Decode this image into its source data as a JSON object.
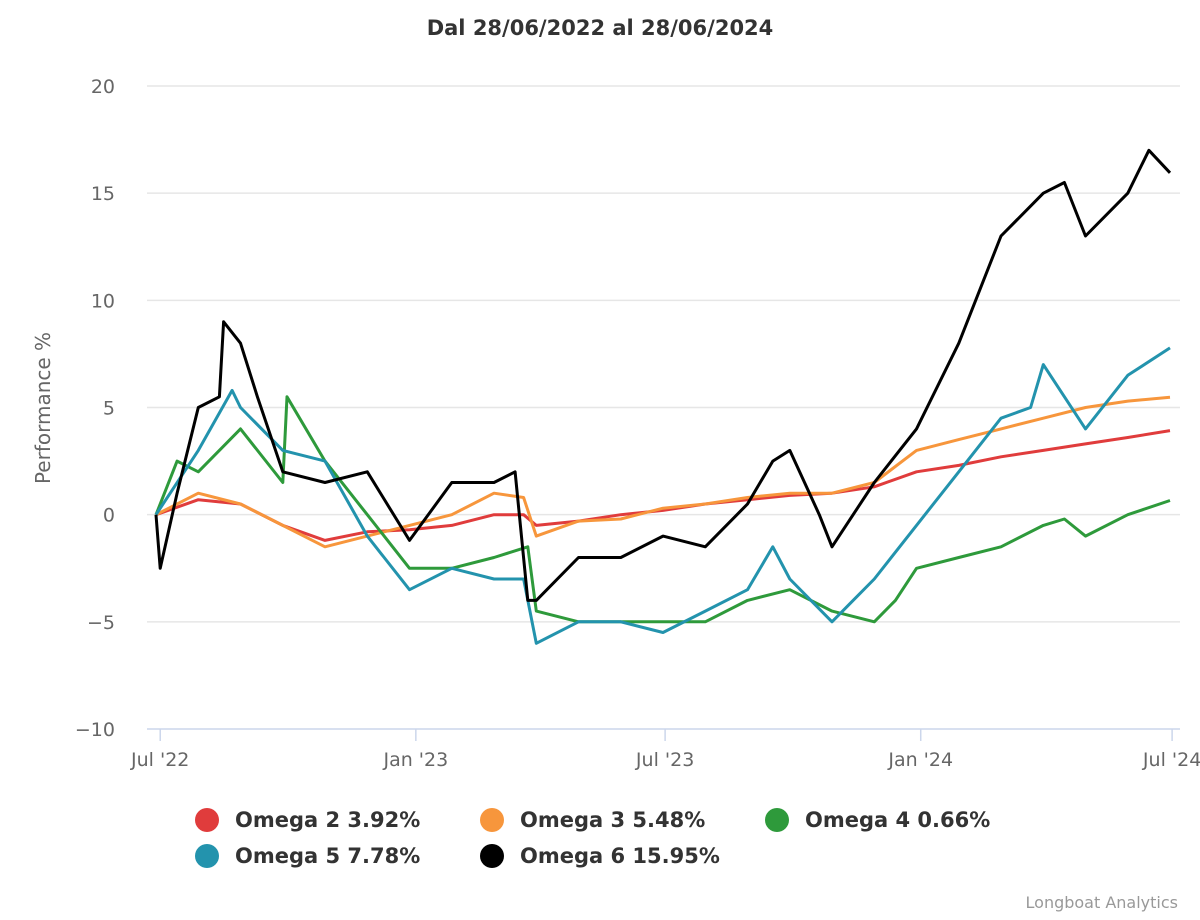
{
  "chart_data": {
    "type": "line",
    "title": "Dal 28/06/2022 al 28/06/2024",
    "xlabel": "",
    "ylabel": "Performance %",
    "x_unit": "months since 28/06/2022",
    "xlim": [
      0,
      24
    ],
    "ylim": [
      -10,
      20
    ],
    "yticks": [
      -10,
      -5,
      0,
      5,
      10,
      15,
      20
    ],
    "ytick_labels": [
      "−10",
      "−5",
      "0",
      "5",
      "10",
      "15",
      "20"
    ],
    "xticks": [
      {
        "pos": 0.1,
        "label": "Jul '22"
      },
      {
        "pos": 6.15,
        "label": "Jan '23"
      },
      {
        "pos": 12.05,
        "label": "Jul '23"
      },
      {
        "pos": 18.1,
        "label": "Jan '24"
      },
      {
        "pos": 24.05,
        "label": "Jul '24"
      }
    ],
    "grid": true,
    "legend_position": "bottom",
    "credit": "Longboat Analytics",
    "series": [
      {
        "name": "Omega 2",
        "label": "Omega 2 3.92%",
        "color": "#e03c3c",
        "x": [
          0,
          1,
          2,
          3,
          4,
          5,
          6,
          7,
          8,
          8.7,
          9,
          10,
          11,
          12,
          13,
          14,
          15,
          16,
          17,
          18,
          19,
          20,
          21,
          22,
          23,
          24
        ],
        "y": [
          0,
          0.7,
          0.5,
          -0.5,
          -1.2,
          -0.8,
          -0.7,
          -0.5,
          0,
          0,
          -0.5,
          -0.3,
          0,
          0.2,
          0.5,
          0.7,
          0.9,
          1.0,
          1.3,
          2.0,
          2.3,
          2.7,
          3.0,
          3.3,
          3.6,
          3.92
        ]
      },
      {
        "name": "Omega 3",
        "label": "Omega 3 5.48%",
        "color": "#f7963c",
        "x": [
          0,
          1,
          2,
          3,
          4,
          5,
          6,
          7,
          8,
          8.7,
          9,
          10,
          11,
          12,
          13,
          14,
          15,
          16,
          17,
          18,
          19,
          20,
          21,
          22,
          23,
          24
        ],
        "y": [
          0,
          1.0,
          0.5,
          -0.5,
          -1.5,
          -1.0,
          -0.5,
          0,
          1.0,
          0.8,
          -1.0,
          -0.3,
          -0.2,
          0.3,
          0.5,
          0.8,
          1.0,
          1.0,
          1.5,
          3.0,
          3.5,
          4.0,
          4.5,
          5.0,
          5.3,
          5.48
        ]
      },
      {
        "name": "Omega 4",
        "label": "Omega 4 0.66%",
        "color": "#2e9a3b",
        "x": [
          0,
          0.5,
          1,
          2,
          3,
          3.1,
          4,
          5,
          6,
          7,
          8,
          8.8,
          9,
          10,
          11,
          12,
          13,
          14,
          15,
          16,
          17,
          17.5,
          18,
          19,
          20,
          21,
          21.5,
          22,
          23,
          24
        ],
        "y": [
          0,
          2.5,
          2.0,
          4.0,
          1.5,
          5.5,
          2.5,
          0,
          -2.5,
          -2.5,
          -2.0,
          -1.5,
          -4.5,
          -5.0,
          -5.0,
          -5.0,
          -5.0,
          -4.0,
          -3.5,
          -4.5,
          -5.0,
          -4.0,
          -2.5,
          -2.0,
          -1.5,
          -0.5,
          -0.2,
          -1.0,
          0,
          0.66
        ]
      },
      {
        "name": "Omega 5",
        "label": "Omega 5 7.78%",
        "color": "#2393ad",
        "x": [
          0,
          1,
          1.8,
          2,
          3,
          4,
          5,
          6,
          7,
          8,
          8.7,
          9,
          10,
          11,
          12,
          13,
          14,
          14.6,
          15,
          16,
          16.5,
          17,
          18,
          19,
          20,
          20.7,
          21,
          22,
          23,
          24
        ],
        "y": [
          0,
          3.0,
          5.8,
          5.0,
          3.0,
          2.5,
          -1.0,
          -3.5,
          -2.5,
          -3.0,
          -3.0,
          -6.0,
          -5.0,
          -5.0,
          -5.5,
          -4.5,
          -3.5,
          -1.5,
          -3.0,
          -5.0,
          -4.0,
          -3.0,
          -0.5,
          2.0,
          4.5,
          5.0,
          7.0,
          4.0,
          6.5,
          7.78
        ]
      },
      {
        "name": "Omega 6",
        "label": "Omega 6 15.95%",
        "color": "#000000",
        "x": [
          0,
          0.1,
          0.5,
          1,
          1.5,
          1.6,
          2,
          2.4,
          3,
          4,
          5,
          6,
          7,
          8,
          8.5,
          8.8,
          9,
          10,
          11,
          12,
          13,
          14,
          14.6,
          15,
          15.7,
          16,
          17,
          18,
          19,
          20,
          21,
          21.5,
          22,
          23,
          23.5,
          24
        ],
        "y": [
          0,
          -2.5,
          1.0,
          5.0,
          5.5,
          9.0,
          8.0,
          5.5,
          2.0,
          1.5,
          2.0,
          -1.2,
          1.5,
          1.5,
          2.0,
          -4.0,
          -4.0,
          -2.0,
          -2.0,
          -1.0,
          -1.5,
          0.5,
          2.5,
          3.0,
          0,
          -1.5,
          1.5,
          4.0,
          8.0,
          13.0,
          15.0,
          15.5,
          13.0,
          15.0,
          17.0,
          15.95
        ]
      }
    ]
  }
}
